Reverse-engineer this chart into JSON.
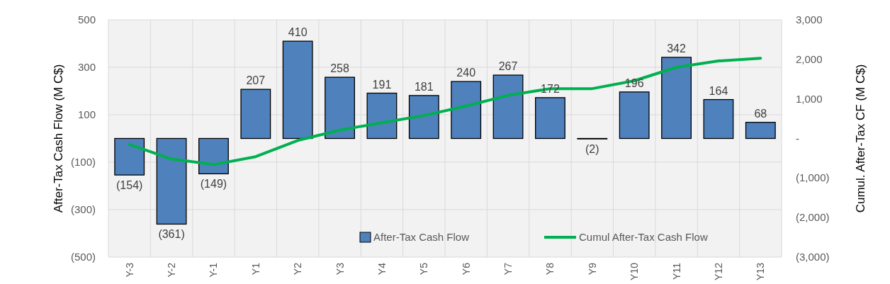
{
  "chart_data": {
    "type": "bar",
    "categories": [
      "Y-3",
      "Y-2",
      "Y-1",
      "Y1",
      "Y2",
      "Y3",
      "Y4",
      "Y5",
      "Y6",
      "Y7",
      "Y8",
      "Y9",
      "Y10",
      "Y11",
      "Y12",
      "Y13"
    ],
    "series": [
      {
        "name": "After-Tax Cash Flow",
        "color": "#4f81bd",
        "values": [
          -154,
          -361,
          -149,
          207,
          410,
          258,
          191,
          181,
          240,
          267,
          172,
          -2,
          196,
          342,
          164,
          68
        ],
        "value_labels": [
          "(154)",
          "(361)",
          "(149)",
          "207",
          "410",
          "258",
          "191",
          "181",
          "240",
          "267",
          "172",
          "(2)",
          "196",
          "342",
          "164",
          "68"
        ]
      },
      {
        "name": "Cumul After-Tax Cash Flow",
        "type": "line",
        "axis": "y2",
        "color": "#00b050",
        "values": [
          -150,
          -520,
          -660,
          -460,
          -50,
          210,
          400,
          580,
          820,
          1090,
          1260,
          1260,
          1460,
          1800,
          1960,
          2030
        ]
      }
    ],
    "ylabel": "After-Tax Cash Flow (M C$)",
    "y2label": "Cumul. After-Tax CF (M C$)",
    "ylim": [
      -500,
      500
    ],
    "yticks": [
      {
        "value": -500,
        "label": "(500)"
      },
      {
        "value": -300,
        "label": "(300)"
      },
      {
        "value": -100,
        "label": "(100)"
      },
      100,
      300,
      500
    ],
    "y2lim": [
      -3000,
      3000
    ],
    "y2ticks": [
      {
        "value": -3000,
        "label": "(3,000)"
      },
      {
        "value": -2000,
        "label": "(2,000)"
      },
      {
        "value": -1000,
        "label": "(1,000)"
      },
      {
        "value": 0,
        "label": "-"
      },
      {
        "value": 1000,
        "label": "1,000"
      },
      {
        "value": 2000,
        "label": "2,000"
      },
      {
        "value": 3000,
        "label": "3,000"
      }
    ],
    "grid": true,
    "legend": "bottom right",
    "marker": "none"
  }
}
